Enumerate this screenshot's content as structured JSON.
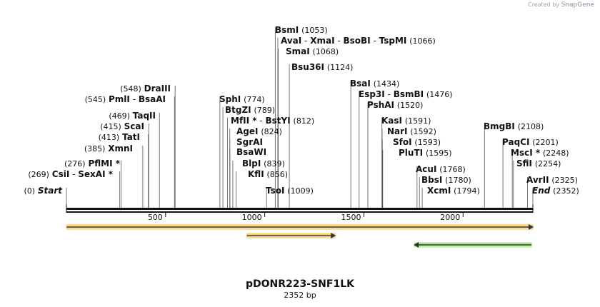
{
  "app": {
    "watermark_prefix": "Created by",
    "watermark_brand": "SnapGene"
  },
  "plasmid": {
    "name": "pDONR223-SNF1LK",
    "length_label": "2352 bp",
    "length_bp": 2352
  },
  "colors": {
    "orange_fill": "#f5a623",
    "orange_glow": "#f7df9b",
    "green_fill": "#3aa03a",
    "green_glow": "#c6efb0",
    "backbone": "#111111"
  },
  "ruler": {
    "ticks": [
      500,
      1000,
      1500,
      2000
    ],
    "labels": [
      "500",
      "1000",
      "1500",
      "2000"
    ]
  },
  "features": [
    {
      "name": "feature-orange-long",
      "start": 1,
      "end": 2352,
      "direction": "forward",
      "color": "orange"
    },
    {
      "name": "feature-orange-short",
      "start": 910,
      "end": 1355,
      "direction": "forward",
      "color": "orange"
    },
    {
      "name": "feature-green",
      "start": 1755,
      "end": 2345,
      "direction": "reverse",
      "color": "green"
    }
  ],
  "sites": [
    {
      "id": "start",
      "pos": 0,
      "pos_label": "(0)",
      "names": [
        "Start"
      ],
      "italic": true,
      "num_first": true
    },
    {
      "id": "csii",
      "pos": 269,
      "pos_label": "(269)",
      "names": [
        "CsiI",
        "SexAI *"
      ],
      "num_first": true
    },
    {
      "id": "pflmi",
      "pos": 276,
      "pos_label": "(276)",
      "names": [
        "PflMI *"
      ],
      "num_first": true
    },
    {
      "id": "xmni",
      "pos": 385,
      "pos_label": "(385)",
      "names": [
        "XmnI"
      ],
      "num_first": true
    },
    {
      "id": "tati",
      "pos": 413,
      "pos_label": "(413)",
      "names": [
        "TatI"
      ],
      "num_first": true
    },
    {
      "id": "scai",
      "pos": 415,
      "pos_label": "(415)",
      "names": [
        "ScaI"
      ],
      "num_first": true
    },
    {
      "id": "taqii",
      "pos": 469,
      "pos_label": "(469)",
      "names": [
        "TaqII"
      ],
      "num_first": true
    },
    {
      "id": "pmli",
      "pos": 545,
      "pos_label": "(545)",
      "names": [
        "PmlI",
        "BsaAI"
      ],
      "num_first": true
    },
    {
      "id": "draiii",
      "pos": 548,
      "pos_label": "(548)",
      "names": [
        "DraIII"
      ],
      "num_first": true
    },
    {
      "id": "sphi",
      "pos": 774,
      "pos_label": "(774)",
      "names": [
        "SphI"
      ]
    },
    {
      "id": "btgzi",
      "pos": 789,
      "pos_label": "(789)",
      "names": [
        "BtgZI"
      ]
    },
    {
      "id": "mfli",
      "pos": 812,
      "pos_label": "(812)",
      "names": [
        "MfII *",
        "BstYI"
      ]
    },
    {
      "id": "agei",
      "pos": 824,
      "pos_label": "(824)",
      "names": [
        "AgeI"
      ]
    },
    {
      "id": "sgrai",
      "pos": 824,
      "pos_label": "",
      "names": [
        "SgrAI"
      ]
    },
    {
      "id": "bsawi",
      "pos": 824,
      "pos_label": "",
      "names": [
        "BsaWI"
      ]
    },
    {
      "id": "blpi",
      "pos": 839,
      "pos_label": "(839)",
      "names": [
        "BlpI"
      ]
    },
    {
      "id": "kfli",
      "pos": 856,
      "pos_label": "(856)",
      "names": [
        "KflI"
      ]
    },
    {
      "id": "tsoi",
      "pos": 1009,
      "pos_label": "(1009)",
      "names": [
        "TsoI"
      ]
    },
    {
      "id": "bsmi",
      "pos": 1053,
      "pos_label": "(1053)",
      "names": [
        "BsmI"
      ]
    },
    {
      "id": "avai",
      "pos": 1066,
      "pos_label": "(1066)",
      "names": [
        "AvaI",
        "XmaI",
        "BsoBI",
        "TspMI"
      ]
    },
    {
      "id": "smai",
      "pos": 1068,
      "pos_label": "(1068)",
      "names": [
        "SmaI"
      ]
    },
    {
      "id": "bsu36i",
      "pos": 1124,
      "pos_label": "(1124)",
      "names": [
        "Bsu36I"
      ]
    },
    {
      "id": "bsai",
      "pos": 1434,
      "pos_label": "(1434)",
      "names": [
        "BsaI"
      ]
    },
    {
      "id": "esp3i",
      "pos": 1476,
      "pos_label": "(1476)",
      "names": [
        "Esp3I",
        "BsmBI"
      ]
    },
    {
      "id": "pshai",
      "pos": 1520,
      "pos_label": "(1520)",
      "names": [
        "PshAI"
      ]
    },
    {
      "id": "kasi",
      "pos": 1591,
      "pos_label": "(1591)",
      "names": [
        "KasI"
      ]
    },
    {
      "id": "nari",
      "pos": 1592,
      "pos_label": "(1592)",
      "names": [
        "NarI"
      ]
    },
    {
      "id": "sfoi",
      "pos": 1593,
      "pos_label": "(1593)",
      "names": [
        "SfoI"
      ]
    },
    {
      "id": "pluti",
      "pos": 1595,
      "pos_label": "(1595)",
      "names": [
        "PluTI"
      ]
    },
    {
      "id": "acui",
      "pos": 1768,
      "pos_label": "(1768)",
      "names": [
        "AcuI"
      ]
    },
    {
      "id": "bbsi",
      "pos": 1780,
      "pos_label": "(1780)",
      "names": [
        "BbsI"
      ]
    },
    {
      "id": "xcmi",
      "pos": 1794,
      "pos_label": "(1794)",
      "names": [
        "XcmI"
      ]
    },
    {
      "id": "bmgbi",
      "pos": 2108,
      "pos_label": "(2108)",
      "names": [
        "BmgBI"
      ]
    },
    {
      "id": "paqci",
      "pos": 2201,
      "pos_label": "(2201)",
      "names": [
        "PaqCI"
      ]
    },
    {
      "id": "msci",
      "pos": 2248,
      "pos_label": "(2248)",
      "names": [
        "MscI *"
      ]
    },
    {
      "id": "sfii",
      "pos": 2254,
      "pos_label": "(2254)",
      "names": [
        "SfiI"
      ]
    },
    {
      "id": "avrii",
      "pos": 2325,
      "pos_label": "(2325)",
      "names": [
        "AvrII"
      ]
    },
    {
      "id": "end",
      "pos": 2352,
      "pos_label": "(2352)",
      "names": [
        "End"
      ],
      "italic": true
    }
  ]
}
